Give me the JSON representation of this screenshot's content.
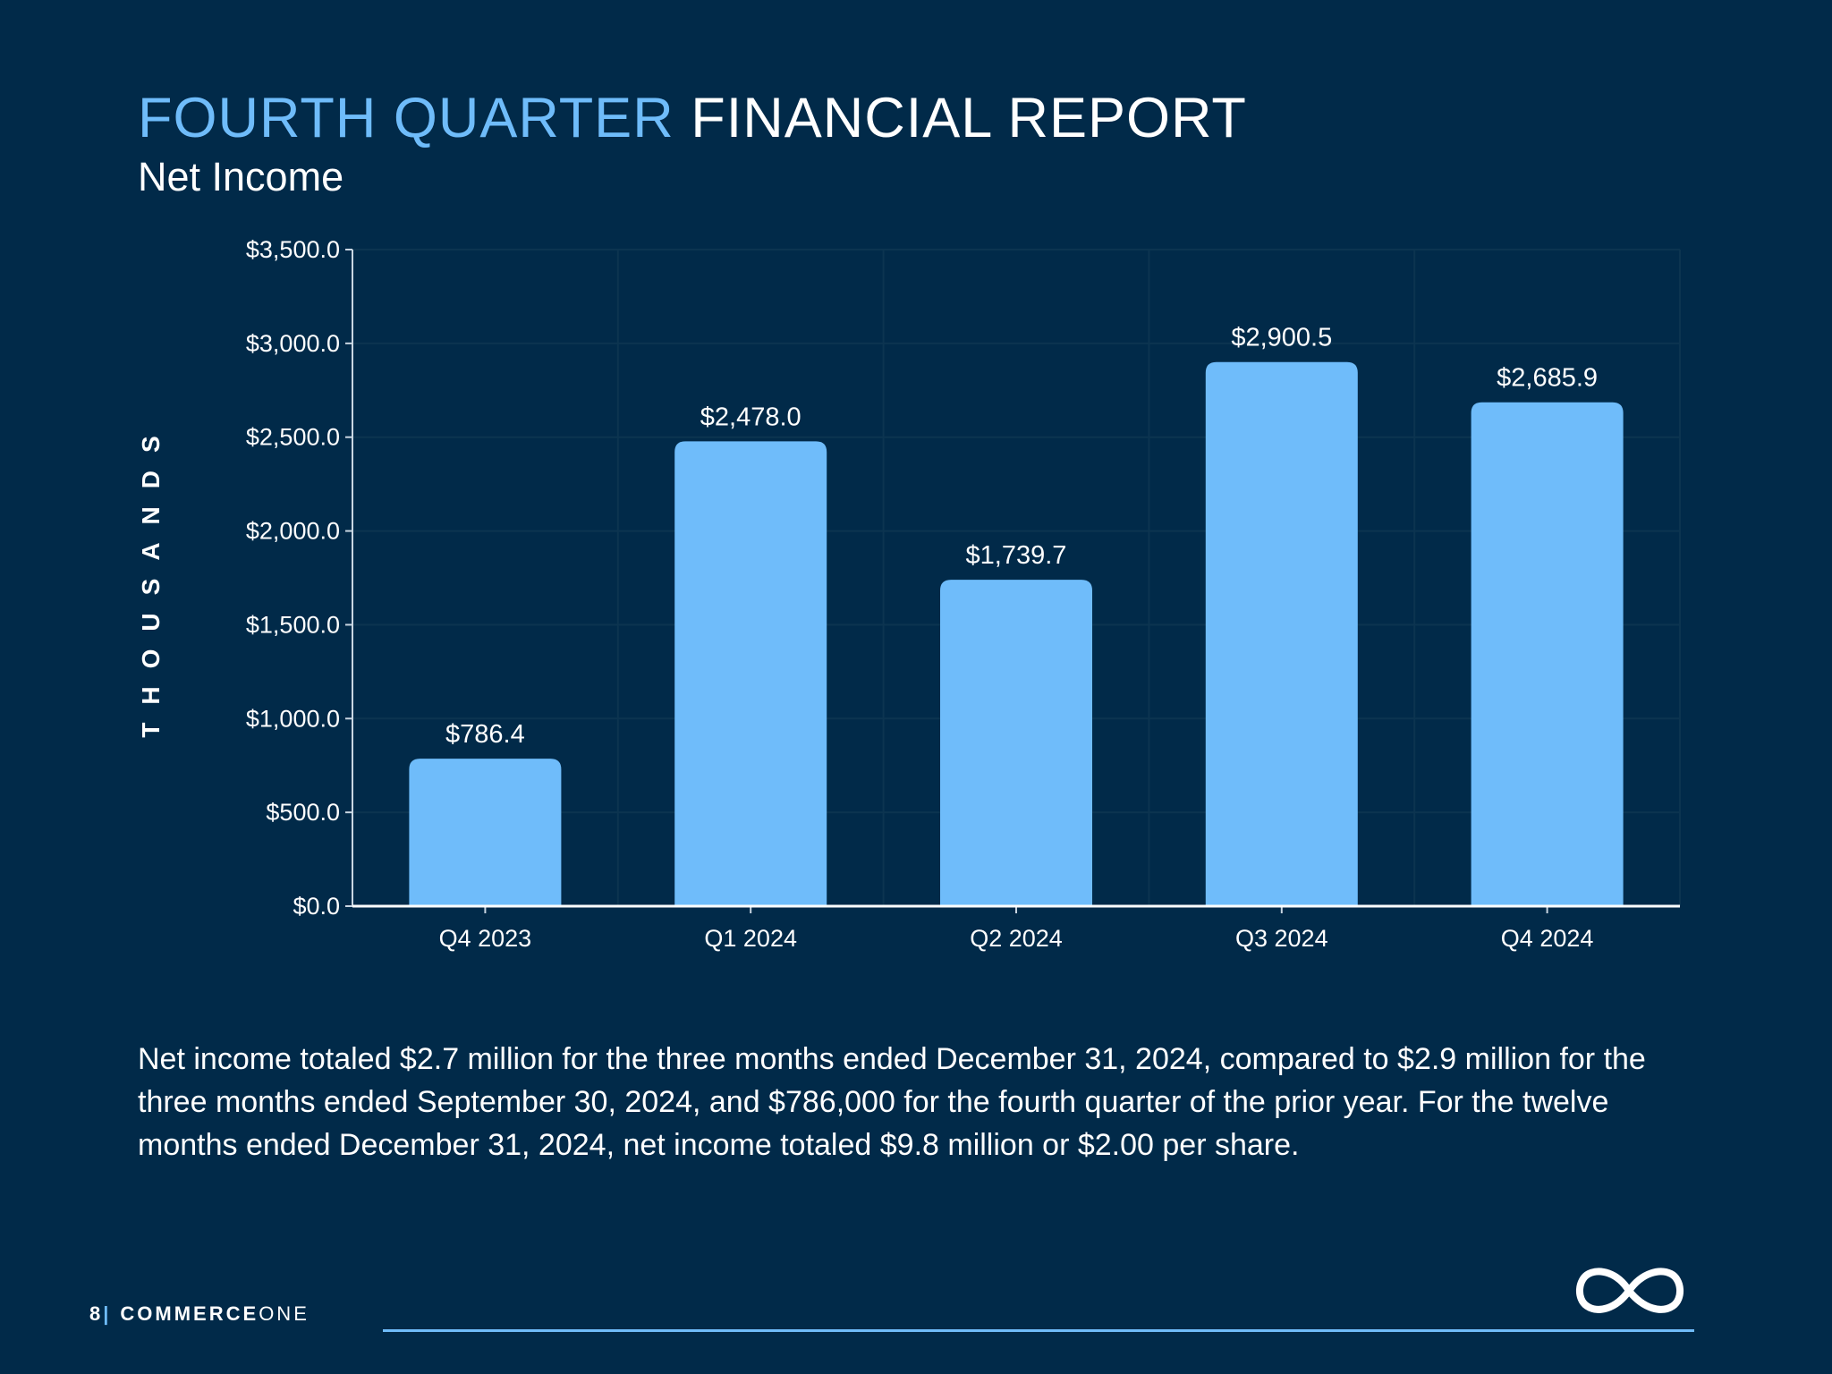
{
  "header": {
    "title_accent": "FOURTH QUARTER",
    "title_main": "FINANCIAL REPORT",
    "subtitle": "Net Income"
  },
  "colors": {
    "background": "#012a49",
    "accent": "#6fbcfa",
    "bar": "#6fbcfa",
    "text": "#ffffff"
  },
  "chart_data": {
    "type": "bar",
    "categories": [
      "Q4 2023",
      "Q1 2024",
      "Q2 2024",
      "Q3 2024",
      "Q4 2024"
    ],
    "values": [
      786.4,
      2478.0,
      1739.7,
      2900.5,
      2685.9
    ],
    "data_labels": [
      "$786.4",
      "$2,478.0",
      "$1,739.7",
      "$2,900.5",
      "$2,685.9"
    ],
    "ylabel": "THOUSANDS",
    "ylim": [
      0,
      3500
    ],
    "yticks": [
      0,
      500,
      1000,
      1500,
      2000,
      2500,
      3000,
      3500
    ],
    "ytick_labels": [
      "$0.0",
      "$500.0",
      "$1,000.0",
      "$1,500.0",
      "$2,000.0",
      "$2,500.0",
      "$3,000.0",
      "$3,500.0"
    ],
    "grid": true,
    "legend": "none"
  },
  "body": {
    "text": "Net income totaled $2.7 million for the three months ended December 31, 2024, compared to $2.9 million for the three months ended September 30, 2024, and $786,000 for the fourth quarter of the prior year. For the twelve months ended December 31, 2024, net income totaled $9.8 million or $2.00 per share."
  },
  "footer": {
    "page_number": "8",
    "separator": "|",
    "brand_strong": "COMMERCE",
    "brand_light": "ONE",
    "logo_icon": "infinity-logo-icon"
  }
}
